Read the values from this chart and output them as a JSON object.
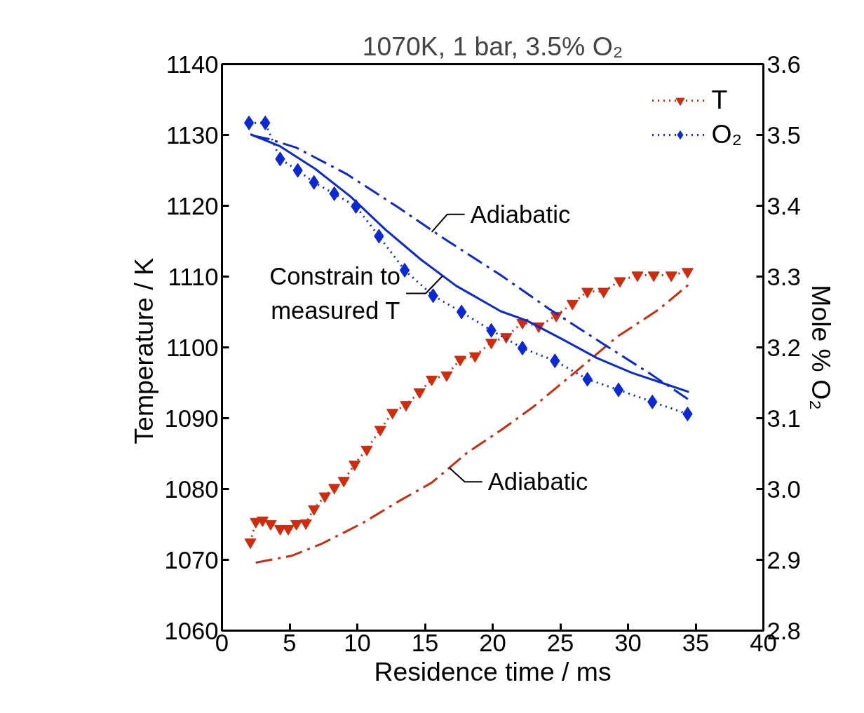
{
  "chart_data": {
    "type": "line",
    "title": "1070K, 1 bar, 3.5% O₂",
    "xlabel": "Residence time / ms",
    "ylabel": "Temperature  / K",
    "y2label": "Mole % O₂",
    "xlim": [
      0,
      40
    ],
    "xticks": [
      0,
      5,
      10,
      15,
      20,
      25,
      30,
      35,
      40
    ],
    "ylim": [
      1060,
      1140
    ],
    "yticks": [
      1060,
      1070,
      1080,
      1090,
      1100,
      1110,
      1120,
      1130,
      1140
    ],
    "y2lim": [
      2.8,
      3.6
    ],
    "y2ticks": [
      2.8,
      2.9,
      {
        "value": 3,
        "label": "3.0"
      },
      3.1,
      3.2,
      3.3,
      3.4,
      3.5,
      3.6
    ],
    "grid": false,
    "legend": "top right",
    "series": [
      {
        "name": "T",
        "color": "#d22a0c",
        "marker": "triangle",
        "line_style": "dotted",
        "x": [
          2.1,
          2.5,
          3.0,
          3.6,
          4.3,
          4.9,
          5.5,
          6.2,
          6.8,
          7.6,
          8.3,
          9.0,
          9.8,
          10.7,
          11.7,
          12.6,
          13.6,
          14.6,
          15.5,
          16.6,
          17.6,
          18.7,
          19.9,
          21.0,
          22.2,
          23.4,
          24.7,
          25.9,
          27.0,
          28.2,
          29.4,
          30.7,
          31.9,
          33.2,
          34.4
        ],
        "values": [
          1072.5,
          1075.4,
          1075.6,
          1075.1,
          1074.4,
          1074.4,
          1075.1,
          1075.2,
          1077.2,
          1079.0,
          1080.2,
          1081.2,
          1083.5,
          1085.6,
          1088.4,
          1090.8,
          1091.9,
          1093.7,
          1095.5,
          1096.1,
          1098.3,
          1098.8,
          1100.7,
          1101.5,
          1103.5,
          1103.0,
          1104.5,
          1106.2,
          1107.9,
          1107.9,
          1109.4,
          1110.2,
          1110.2,
          1110.2,
          1110.7
        ]
      },
      {
        "name": "O₂",
        "color": "#0a28d8",
        "marker": "diamond",
        "line_style": "dotted",
        "axis": "y2",
        "x": [
          2.0,
          3.2,
          4.3,
          5.6,
          6.8,
          8.3,
          9.9,
          11.6,
          13.5,
          15.6,
          17.7,
          19.9,
          22.2,
          24.6,
          27.0,
          29.3,
          31.8,
          34.4
        ],
        "values": [
          3.517,
          3.517,
          3.466,
          3.45,
          3.433,
          3.417,
          3.399,
          3.357,
          3.309,
          3.273,
          3.25,
          3.224,
          3.199,
          3.181,
          3.155,
          3.14,
          3.123,
          3.106
        ]
      },
      {
        "color": "#d22a0c",
        "marker": "none",
        "line_style": "dashed",
        "x": [
          2.5,
          5.2,
          7.4,
          10.4,
          13.0,
          15.5,
          18.1,
          20.6,
          23.0,
          26.1,
          29.2,
          32.3,
          34.5
        ],
        "values": [
          1069.6,
          1070.6,
          1072.3,
          1075.2,
          1078.2,
          1080.9,
          1085.1,
          1088.3,
          1091.6,
          1096.5,
          1101.5,
          1105.4,
          1108.9
        ]
      },
      {
        "color": "#0a28d8",
        "marker": "none",
        "line_style": "solid",
        "axis": "y2",
        "x": [
          2.1,
          4.3,
          6.9,
          9.5,
          12.1,
          14.7,
          17.3,
          20.6,
          22.5,
          25.1,
          27.7,
          30.3,
          32.8,
          34.5
        ],
        "values": [
          3.501,
          3.484,
          3.452,
          3.413,
          3.366,
          3.324,
          3.287,
          3.251,
          3.238,
          3.212,
          3.185,
          3.164,
          3.148,
          3.137
        ]
      },
      {
        "color": "#0a28d8",
        "marker": "none",
        "line_style": "dashed",
        "axis": "y2",
        "x": [
          2.3,
          3.5,
          5.5,
          9.2,
          13.0,
          16.7,
          20.6,
          24.2,
          28.0,
          31.7,
          34.5
        ],
        "values": [
          3.499,
          3.494,
          3.482,
          3.445,
          3.398,
          3.35,
          3.302,
          3.254,
          3.207,
          3.162,
          3.126
        ]
      }
    ],
    "annotations": [
      {
        "text": "Adiabatic",
        "x": 15.5,
        "y": 1116.3
      },
      {
        "text": "Constrain to\nmeasured T",
        "x": 16.3,
        "y": 1110.1
      },
      {
        "text": "Adiabatic",
        "x": 16.8,
        "y": 1083.0
      }
    ]
  }
}
